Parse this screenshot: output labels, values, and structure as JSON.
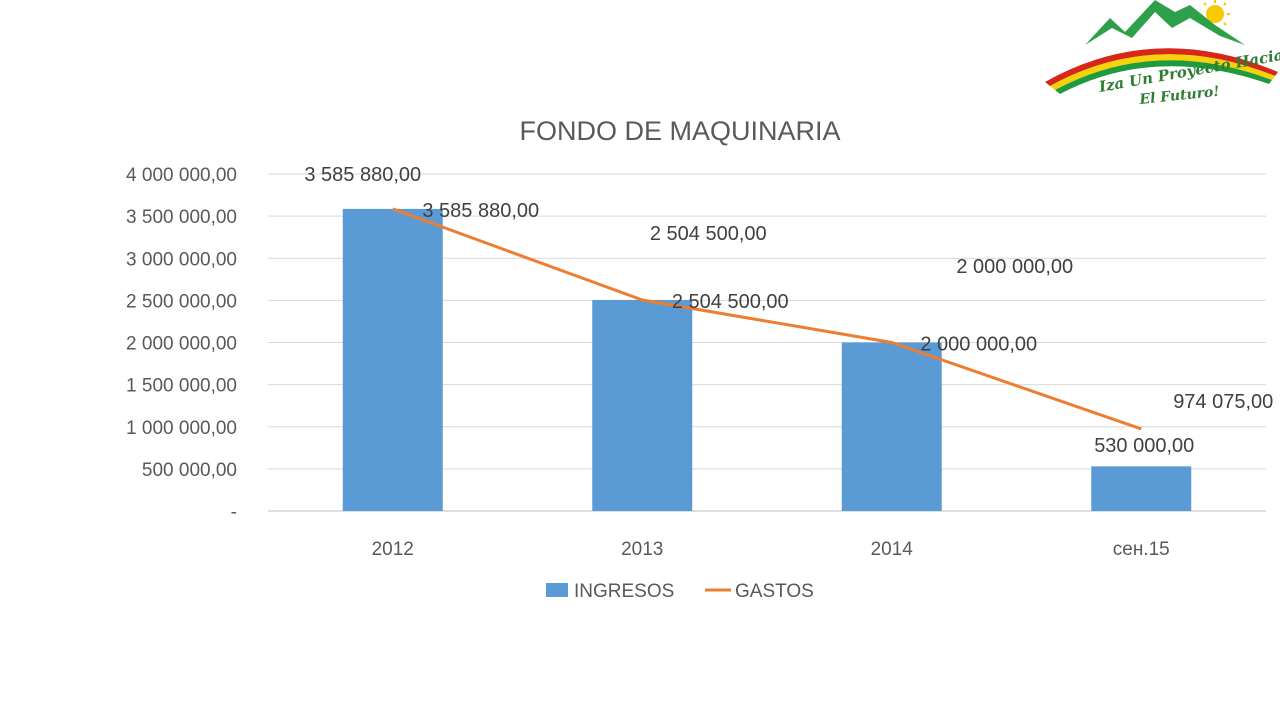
{
  "logo": {
    "line1": "Iza Un Proyecto Hacia",
    "line2": "El Futuro!"
  },
  "chart_data": {
    "type": "bar",
    "title": "FONDO DE MAQUINARIA",
    "categories": [
      "2012",
      "2013",
      "2014",
      "сен.15"
    ],
    "ytick_labels": [
      "-",
      "500 000,00",
      "1 000 000,00",
      "1 500 000,00",
      "2 000 000,00",
      "2 500 000,00",
      "3 000 000,00",
      "3 500 000,00",
      "4 000 000,00"
    ],
    "ylim": [
      0,
      4000000
    ],
    "grid": true,
    "legend_position": "bottom",
    "series": [
      {
        "name": "INGRESOS",
        "kind": "bar",
        "color": "#5b9bd5",
        "values": [
          3585880,
          2504500,
          2000000,
          530000
        ],
        "labels": [
          "3 585 880,00",
          "2 504 500,00",
          "2 000 000,00",
          "530 000,00"
        ]
      },
      {
        "name": "GASTOS",
        "kind": "line",
        "color": "#ed7d31",
        "values": [
          3585880,
          2504500,
          2000000,
          974075
        ],
        "labels": [
          "3 585 880,00",
          "2 504 500,00",
          "2 000 000,00",
          "974 075,00"
        ]
      }
    ]
  }
}
